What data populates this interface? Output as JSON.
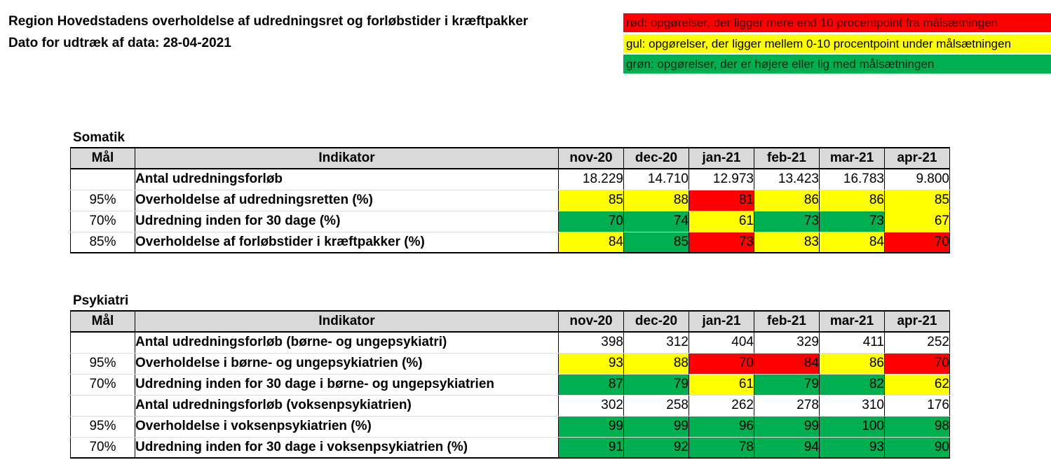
{
  "header": {
    "title": "Region Hovedstadens overholdelse af udredningsret og forløbstider i kræftpakker",
    "date_line": "Dato for udtræk af data: 28-04-2021"
  },
  "legend": {
    "red": "rød: opgørelser, der ligger mere end 10 procentpoint fra målsætningen",
    "yellow": "gul: opgørelser, der ligger mellem 0-10 procentpoint under målsætningen",
    "green": "grøn: opgørelser, der er højere eller lig med målsætningen",
    "colors": {
      "red": "#ff0000",
      "yellow": "#ffff00",
      "green": "#00b050"
    }
  },
  "columns": {
    "goal": "Mål",
    "indicator": "Indikator",
    "months": [
      "nov-20",
      "dec-20",
      "jan-21",
      "feb-21",
      "mar-21",
      "apr-21"
    ]
  },
  "somatik": {
    "title": "Somatik",
    "rows": [
      {
        "goal": "",
        "indicator": "Antal udredningsforløb",
        "values": [
          "18.229",
          "14.710",
          "12.973",
          "13.423",
          "16.783",
          "9.800"
        ],
        "status": [
          "",
          "",
          "",
          "",
          "",
          ""
        ]
      },
      {
        "goal": "95%",
        "indicator": "Overholdelse af udredningsretten (%)",
        "values": [
          "85",
          "88",
          "81",
          "86",
          "86",
          "85"
        ],
        "status": [
          "yellow",
          "yellow",
          "red",
          "yellow",
          "yellow",
          "yellow"
        ]
      },
      {
        "goal": "70%",
        "indicator": "Udredning inden for 30 dage (%)",
        "values": [
          "70",
          "74",
          "61",
          "73",
          "73",
          "67"
        ],
        "status": [
          "green",
          "green",
          "yellow",
          "green",
          "green",
          "yellow"
        ]
      },
      {
        "goal": "85%",
        "indicator": "Overholdelse af forløbstider i kræftpakker (%)",
        "values": [
          "84",
          "85",
          "73",
          "83",
          "84",
          "70"
        ],
        "status": [
          "yellow",
          "green",
          "red",
          "yellow",
          "yellow",
          "red"
        ]
      }
    ]
  },
  "psykiatri": {
    "title": "Psykiatri",
    "rows": [
      {
        "goal": "",
        "indicator": "Antal udredningsforløb (børne- og ungepsykiatri)",
        "values": [
          "398",
          "312",
          "404",
          "329",
          "411",
          "252"
        ],
        "status": [
          "",
          "",
          "",
          "",
          "",
          ""
        ]
      },
      {
        "goal": "95%",
        "indicator": "Overholdelse i børne- og ungepsykiatrien (%)",
        "values": [
          "93",
          "88",
          "70",
          "84",
          "86",
          "70"
        ],
        "status": [
          "yellow",
          "yellow",
          "red",
          "red",
          "yellow",
          "red"
        ]
      },
      {
        "goal": "70%",
        "indicator": "Udredning inden for 30 dage i børne- og ungepsykiatrien",
        "values": [
          "87",
          "79",
          "61",
          "79",
          "82",
          "62"
        ],
        "status": [
          "green",
          "green",
          "yellow",
          "green",
          "green",
          "yellow"
        ]
      },
      {
        "goal": "",
        "indicator": "Antal udredningsforløb (voksenpsykiatrien)",
        "values": [
          "302",
          "258",
          "262",
          "278",
          "310",
          "176"
        ],
        "status": [
          "",
          "",
          "",
          "",
          "",
          ""
        ]
      },
      {
        "goal": "95%",
        "indicator": "Overholdelse i voksenpsykiatrien (%)",
        "values": [
          "99",
          "99",
          "96",
          "99",
          "100",
          "98"
        ],
        "status": [
          "green",
          "green",
          "green",
          "green",
          "green",
          "green"
        ]
      },
      {
        "goal": "70%",
        "indicator": "Udredning inden for 30 dage i voksenpsykiatrien (%)",
        "values": [
          "91",
          "92",
          "78",
          "94",
          "93",
          "90"
        ],
        "status": [
          "green",
          "green",
          "green",
          "green",
          "green",
          "green"
        ]
      }
    ]
  }
}
